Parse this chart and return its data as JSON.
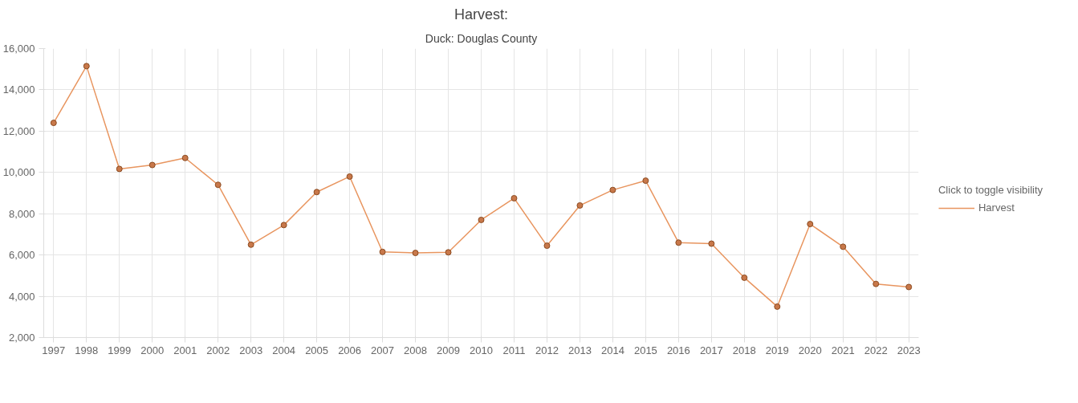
{
  "chart_data": {
    "type": "line",
    "title": "Harvest:",
    "subtitle": "Duck: Douglas County",
    "legend_title": "Click to toggle visibility",
    "legend": "right",
    "grid": true,
    "marker": "circle",
    "ylim": [
      2000,
      16000
    ],
    "yticks": [
      {
        "value": 2000,
        "label": "2,000"
      },
      {
        "value": 4000,
        "label": "4,000"
      },
      {
        "value": 6000,
        "label": "6,000"
      },
      {
        "value": 8000,
        "label": "8,000"
      },
      {
        "value": 10000,
        "label": "10,000"
      },
      {
        "value": 12000,
        "label": "12,000"
      },
      {
        "value": 14000,
        "label": "14,000"
      },
      {
        "value": 16000,
        "label": "16,000"
      }
    ],
    "categories": [
      "1997",
      "1998",
      "1999",
      "2000",
      "2001",
      "2002",
      "2003",
      "2004",
      "2005",
      "2006",
      "2007",
      "2008",
      "2009",
      "2010",
      "2011",
      "2012",
      "2013",
      "2014",
      "2015",
      "2016",
      "2017",
      "2018",
      "2019",
      "2020",
      "2021",
      "2022",
      "2023"
    ],
    "series": [
      {
        "name": "Harvest",
        "color": "#e8955f",
        "values": [
          12400,
          15150,
          10170,
          10360,
          10700,
          9400,
          6500,
          7450,
          9050,
          9800,
          6150,
          6100,
          6130,
          7700,
          8750,
          6450,
          8400,
          9150,
          9600,
          6600,
          6550,
          4900,
          3500,
          7500,
          6400,
          4600,
          4450
        ]
      }
    ]
  }
}
